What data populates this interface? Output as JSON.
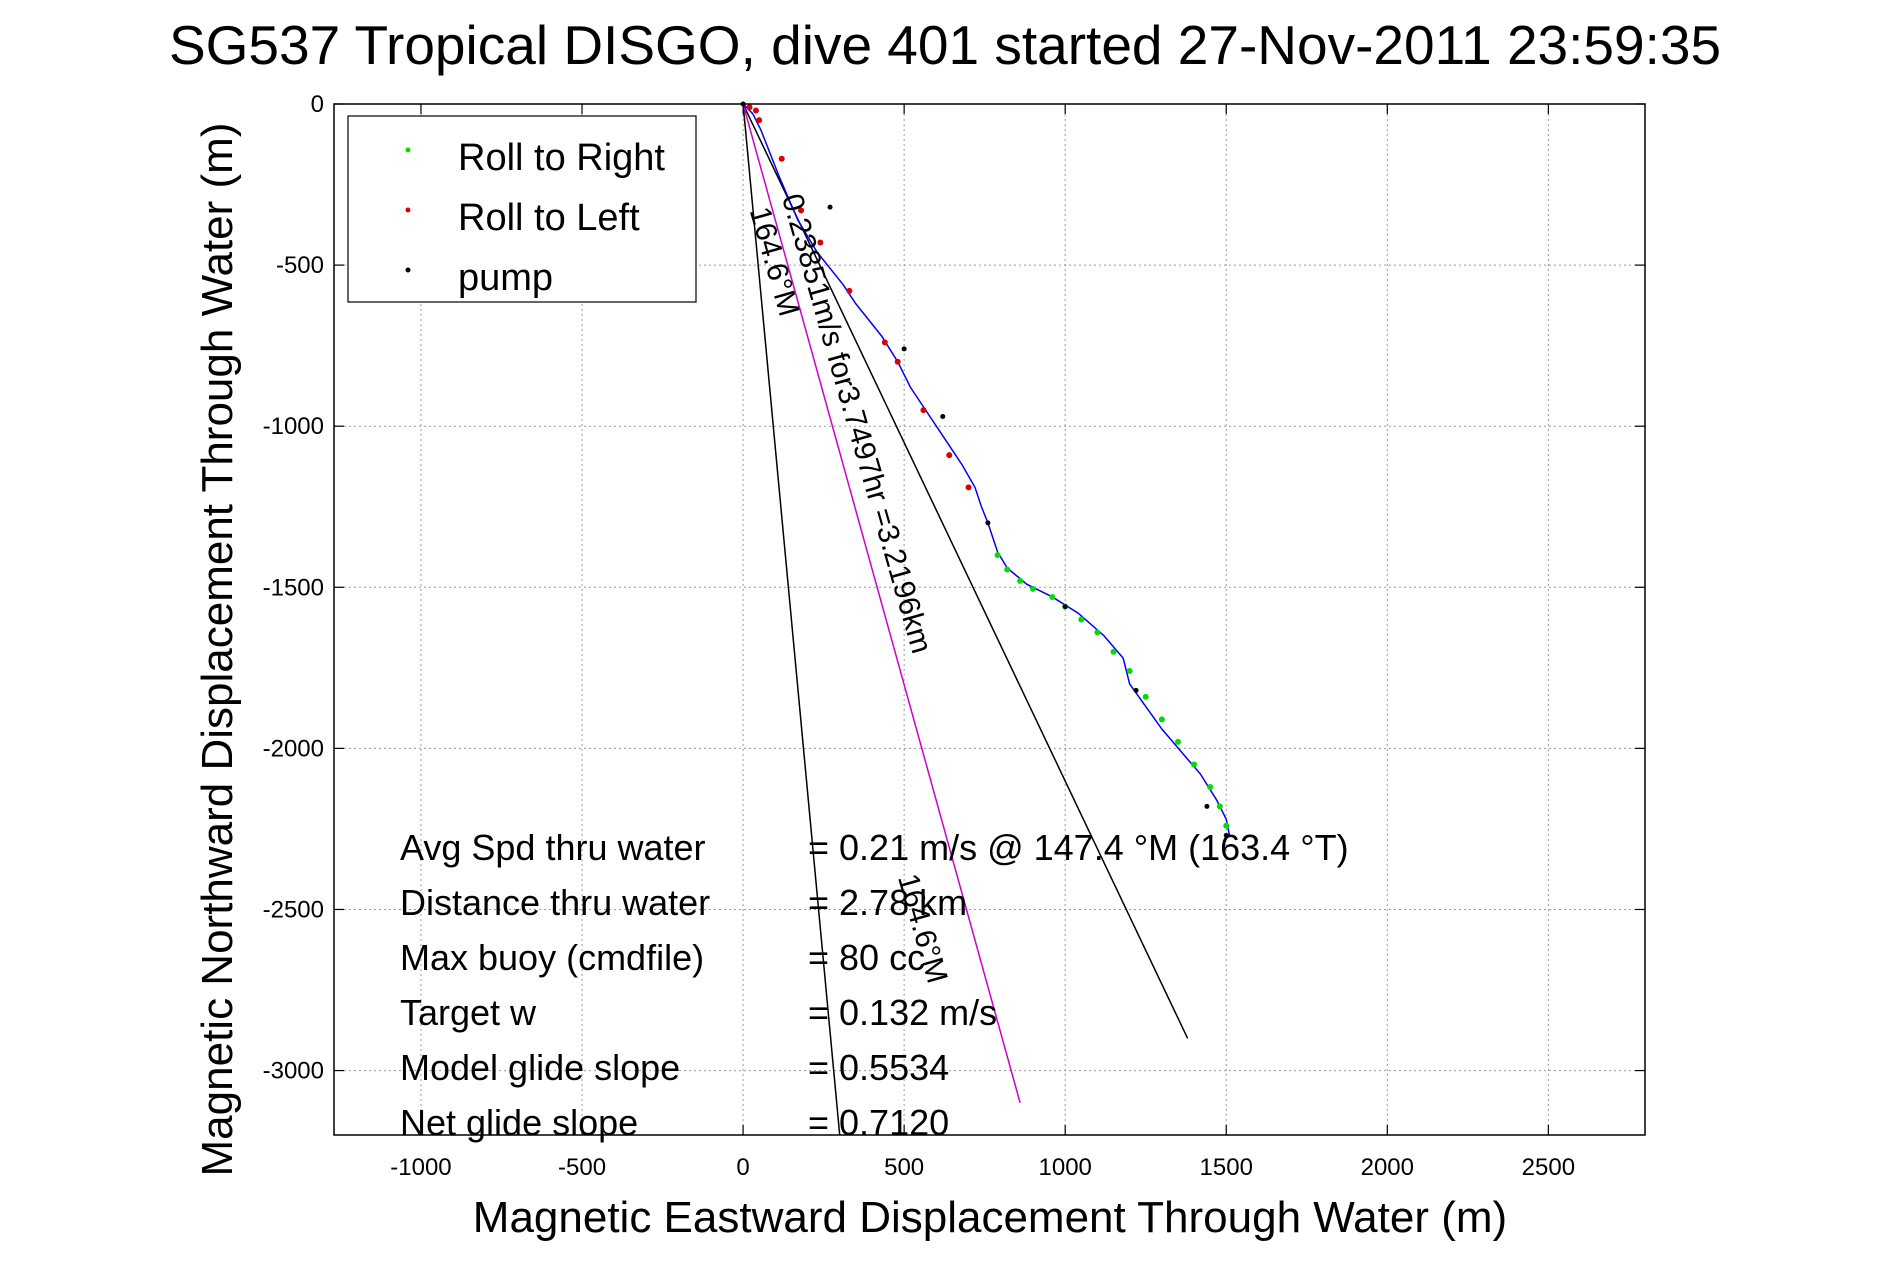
{
  "chart_data": {
    "type": "line",
    "title": "SG537 Tropical DISGO, dive 401 started 27-Nov-2011 23:59:35",
    "xlabel": "Magnetic Eastward Displacement Through Water (m)",
    "ylabel": "Magnetic Northward Displacement Through Water (m)",
    "xlim": [
      -1270,
      2800
    ],
    "ylim": [
      -3200,
      0
    ],
    "xticks": [
      -1000,
      -500,
      0,
      500,
      1000,
      1500,
      2000,
      2500
    ],
    "yticks": [
      0,
      -500,
      -1000,
      -1500,
      -2000,
      -2500,
      -3000
    ],
    "grid": true,
    "legend_position": "top-left",
    "legend": [
      {
        "label": "Roll to Right",
        "color": "#00dd00"
      },
      {
        "label": "Roll to Left",
        "color": "#dd0000"
      },
      {
        "label": "pump",
        "color": "#000000"
      }
    ],
    "track": {
      "color": "#0000ff",
      "x": [
        0,
        30,
        55,
        110,
        170,
        230,
        310,
        350,
        430,
        480,
        520,
        560,
        620,
        680,
        720,
        740,
        760,
        790,
        820,
        880,
        960,
        1040,
        1120,
        1180,
        1200,
        1250,
        1300,
        1360,
        1420,
        1470,
        1500,
        1510
      ],
      "y": [
        0,
        -30,
        -80,
        -220,
        -360,
        -460,
        -560,
        -620,
        -720,
        -800,
        -880,
        -940,
        -1030,
        -1120,
        -1190,
        -1250,
        -1300,
        -1390,
        -1440,
        -1490,
        -1530,
        -1580,
        -1650,
        -1720,
        -1800,
        -1870,
        -1940,
        -2010,
        -2080,
        -2160,
        -2220,
        -2270
      ]
    },
    "roll_right": {
      "color": "#00dd00",
      "x": [
        790,
        820,
        860,
        900,
        960,
        1000,
        1050,
        1100,
        1150,
        1200,
        1250,
        1300,
        1350,
        1400,
        1450,
        1480,
        1500
      ],
      "y": [
        -1400,
        -1445,
        -1480,
        -1505,
        -1530,
        -1560,
        -1600,
        -1640,
        -1700,
        -1760,
        -1840,
        -1910,
        -1980,
        -2050,
        -2120,
        -2180,
        -2240
      ]
    },
    "roll_left": {
      "color": "#dd0000",
      "x": [
        20,
        40,
        50,
        120,
        180,
        240,
        330,
        440,
        480,
        560,
        640,
        700
      ],
      "y": [
        -10,
        -20,
        -50,
        -170,
        -330,
        -430,
        -580,
        -740,
        -800,
        -950,
        -1090,
        -1190
      ]
    },
    "pump": {
      "color": "#000000",
      "x": [
        0,
        270,
        500,
        620,
        760,
        1000,
        1220,
        1440,
        1500
      ],
      "y": [
        0,
        -320,
        -760,
        -970,
        -1300,
        -1560,
        -1820,
        -2180,
        -2270
      ]
    },
    "reference_lines": [
      {
        "color": "#000000",
        "x": [
          0,
          1380
        ],
        "y": [
          0,
          -2900
        ]
      },
      {
        "color": "#000000",
        "x": [
          0,
          300
        ],
        "y": [
          0,
          -3200
        ]
      },
      {
        "color": "#cc00cc",
        "x": [
          0,
          860
        ],
        "y": [
          0,
          -3100
        ]
      }
    ],
    "annotations": [
      {
        "text": "0.23851m/s for3.7497hr =3.2196km",
        "x": 120,
        "y": -290,
        "rotation": 74
      },
      {
        "text": "164.6°M",
        "x": 20,
        "y": -330,
        "rotation": 74
      },
      {
        "text": "164.6°M",
        "x": 480,
        "y": -2400,
        "rotation": 74
      }
    ],
    "stats": [
      {
        "label": "Avg Spd thru water",
        "value": "=  0.21 m/s @ 147.4 °M (163.4 °T)"
      },
      {
        "label": "Distance thru water",
        "value": "=  2.78 km"
      },
      {
        "label": "Max buoy (cmdfile)",
        "value": "= 80 cc"
      },
      {
        "label": "Target w",
        "value": "= 0.132 m/s"
      },
      {
        "label": "Model glide slope",
        "value": "= 0.5534"
      },
      {
        "label": "Net glide slope",
        "value": "= 0.7120"
      }
    ]
  }
}
